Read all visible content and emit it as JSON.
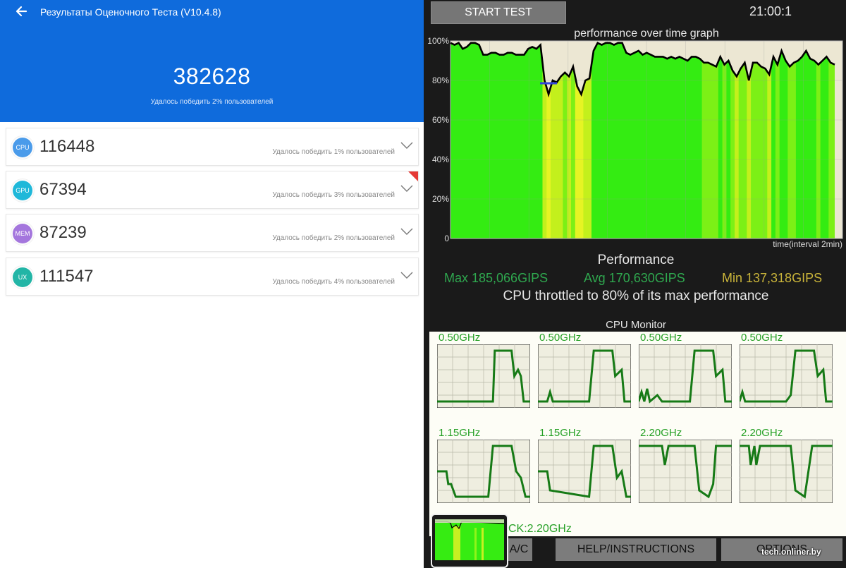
{
  "left": {
    "title": "Результаты Оценочного Теста (V10.4.8)",
    "total_score": "382628",
    "total_subtitle": "Удалось победить 2% пользователей",
    "header_color": "#0f6bdc",
    "categories": [
      {
        "badge": "CPU",
        "score": "116448",
        "subtitle": "Удалось победить 1% пользователей",
        "color": "#4a9bea"
      },
      {
        "badge": "GPU",
        "score": "67394",
        "subtitle": "Удалось победить 3% пользователей",
        "color": "#1fb8d9",
        "new_ribbon": true
      },
      {
        "badge": "MEM",
        "score": "87239",
        "subtitle": "Удалось победить 2% пользователей",
        "color": "#a476dd"
      },
      {
        "badge": "UX",
        "score": "111547",
        "subtitle": "Удалось победить 4% пользователей",
        "color": "#22b5a6"
      }
    ]
  },
  "right": {
    "start_button": "START TEST",
    "clock": "21:00:1",
    "graph_title": "performance over time graph",
    "y_ticks": [
      "100%",
      "80%",
      "60%",
      "40%",
      "20%",
      "0"
    ],
    "x_axis_label": "time(interval 2min)",
    "performance_title": "Performance",
    "max": "Max 185,066GIPS",
    "avg": "Avg 170,630GIPS",
    "min": "Min 137,318GIPS",
    "throttle_text": "CPU throttled to 80% of its max performance",
    "cpu_monitor_title": "CPU Monitor",
    "cores": [
      {
        "freq": "0.50GHz"
      },
      {
        "freq": "0.50GHz"
      },
      {
        "freq": "0.50GHz"
      },
      {
        "freq": "0.50GHz"
      },
      {
        "freq": "1.15GHz"
      },
      {
        "freq": "1.15GHz"
      },
      {
        "freq": "2.20GHz"
      },
      {
        "freq": "2.20GHz"
      }
    ],
    "clock_label": "CK:2.20GHz",
    "buttons": {
      "ac": "A/C",
      "help": "HELP/INSTRUCTIONS",
      "options": "OPTIONS"
    },
    "watermark": "tech.onliner.by"
  },
  "chart_data": {
    "type": "area",
    "title": "performance over time graph",
    "xlabel": "time(interval 2min)",
    "ylabel": "",
    "ylim": [
      0,
      100
    ],
    "y_unit": "%",
    "series": [
      {
        "values": [
          99,
          98,
          99,
          96,
          97,
          99,
          99,
          98,
          93,
          93,
          94,
          94,
          93,
          93,
          94,
          94,
          93,
          93,
          93,
          96,
          97,
          96,
          98,
          80,
          73,
          80,
          79,
          82,
          84,
          82,
          87,
          77,
          73,
          80,
          81,
          95,
          99,
          98,
          99,
          99,
          98,
          99,
          99,
          94,
          93,
          94,
          95,
          93,
          94,
          93,
          92,
          92,
          92,
          91,
          92,
          91,
          92,
          91,
          90,
          92,
          92,
          91,
          89,
          89,
          88,
          87,
          92,
          88,
          90,
          85,
          82,
          86,
          89,
          80,
          89,
          89,
          87,
          86,
          83,
          92,
          88,
          95,
          90,
          87,
          89,
          90,
          92,
          95,
          91,
          90,
          88,
          90,
          92,
          89,
          88
        ]
      }
    ]
  }
}
